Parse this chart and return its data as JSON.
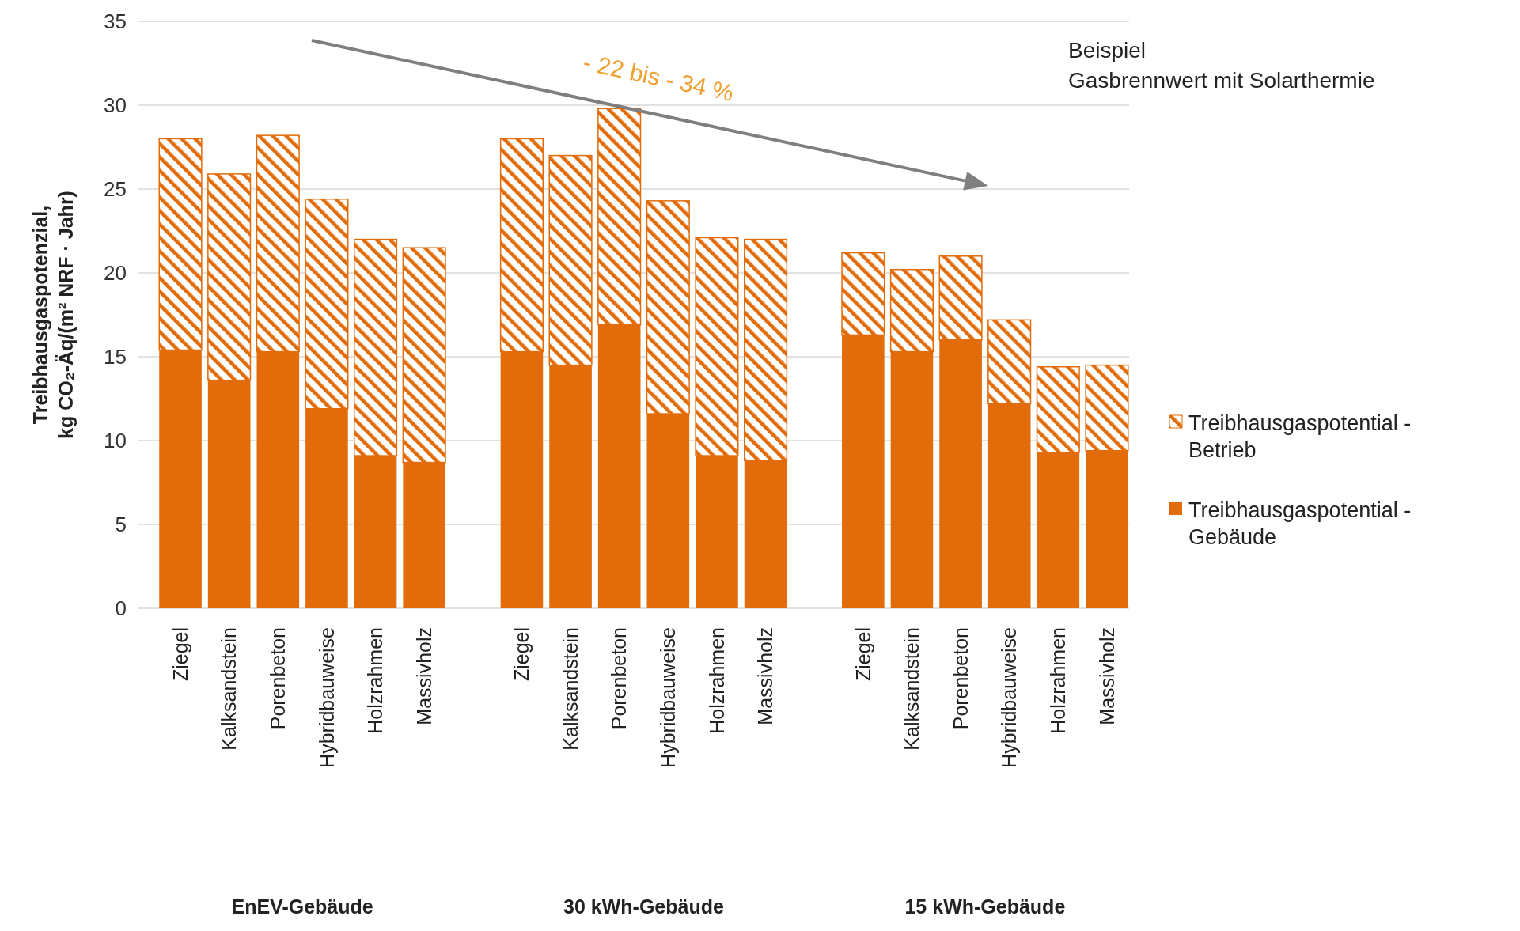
{
  "chart_data": {
    "type": "bar",
    "stacked": true,
    "subtitle": "Beispiel\nGasbrennwert mit Solarthermie",
    "ylabel": "Treibhausgaspotenzial,\nkg CO₂-Äq/(m² NRF · Jahr)",
    "categories": [
      "Ziegel",
      "Kalksandstein",
      "Porenbeton",
      "Hybridbauweise",
      "Holzrahmen",
      "Massivholz",
      null,
      "Ziegel",
      "Kalksandstein",
      "Porenbeton",
      "Hybridbauweise",
      "Holzrahmen",
      "Massivholz",
      null,
      "Ziegel",
      "Kalksandstein",
      "Porenbeton",
      "Hybridbauweise",
      "Holzrahmen",
      "Massivholz"
    ],
    "series": [
      {
        "name": "Treibhausgaspotential - Gebäude",
        "color": "#e36c0a",
        "values": [
          15.4,
          13.6,
          15.3,
          11.9,
          9.1,
          8.7,
          null,
          15.3,
          14.5,
          16.9,
          11.6,
          9.1,
          8.8,
          null,
          16.3,
          15.3,
          16.0,
          12.2,
          9.3,
          9.4
        ]
      },
      {
        "name": "Treibhausgaspotential - Betrieb",
        "color": "#e36c0a",
        "values": [
          12.6,
          12.3,
          12.9,
          12.5,
          12.9,
          12.8,
          null,
          12.7,
          12.5,
          12.9,
          12.7,
          13.0,
          13.2,
          null,
          4.9,
          4.9,
          5.0,
          5.0,
          5.1,
          5.1
        ]
      }
    ],
    "annotations": [
      "EnEV-Gebäude",
      "30 kWh-Gebäude",
      "15 kWh-Gebäude",
      "- 22 bis - 34 %"
    ],
    "ylim": [
      0,
      35
    ],
    "yticks": [
      0,
      5,
      10,
      15,
      20,
      25,
      30,
      35
    ],
    "grid": "y",
    "legend": "right"
  }
}
